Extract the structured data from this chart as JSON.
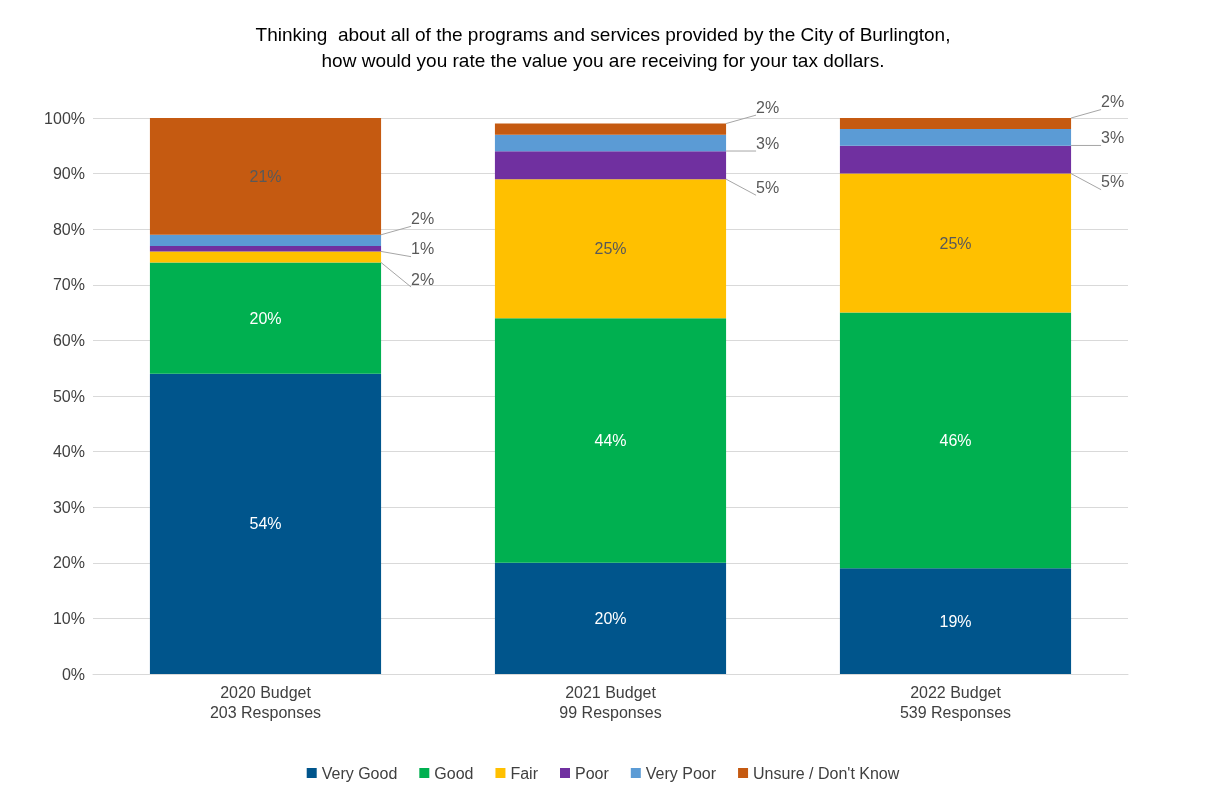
{
  "chart_data": {
    "type": "bar",
    "stacked": true,
    "title": "Thinking  about all of the programs and services provided by the City of Burlington,\nhow would you rate the value you are receiving for your tax dollars.",
    "categories": [
      "2020 Budget\n203 Responses",
      "2021 Budget\n99 Responses",
      "2022 Budget\n539 Responses"
    ],
    "series": [
      {
        "name": "Very Good",
        "color": "#00558c",
        "values": [
          54,
          20,
          19
        ],
        "value_labels": [
          "54%",
          "20%",
          "19%"
        ]
      },
      {
        "name": "Good",
        "color": "#00b050",
        "values": [
          20,
          44,
          46
        ],
        "value_labels": [
          "20%",
          "44%",
          "46%"
        ]
      },
      {
        "name": "Fair",
        "color": "#ffc000",
        "values": [
          2,
          25,
          25
        ],
        "value_labels": [
          "2%",
          "25%",
          "25%"
        ]
      },
      {
        "name": "Poor",
        "color": "#7030a0",
        "values": [
          1,
          5,
          5
        ],
        "value_labels": [
          "1%",
          "5%",
          "5%"
        ]
      },
      {
        "name": "Very Poor",
        "color": "#5b9bd5",
        "values": [
          2,
          3,
          3
        ],
        "value_labels": [
          "2%",
          "3%",
          "3%"
        ]
      },
      {
        "name": "Unsure / Don't Know",
        "color": "#c55a11",
        "values": [
          21,
          2,
          2
        ],
        "value_labels": [
          "21%",
          "2%",
          "2%"
        ]
      }
    ],
    "ylim": [
      0,
      100
    ],
    "yticks": [
      {
        "value": 0,
        "label": "0%"
      },
      {
        "value": 10,
        "label": "10%"
      },
      {
        "value": 20,
        "label": "20%"
      },
      {
        "value": 30,
        "label": "30%"
      },
      {
        "value": 40,
        "label": "40%"
      },
      {
        "value": 50,
        "label": "50%"
      },
      {
        "value": 60,
        "label": "60%"
      },
      {
        "value": 70,
        "label": "70%"
      },
      {
        "value": 80,
        "label": "80%"
      },
      {
        "value": 90,
        "label": "90%"
      },
      {
        "value": 100,
        "label": "100%"
      }
    ],
    "grid": "y",
    "legend": "bottom"
  }
}
